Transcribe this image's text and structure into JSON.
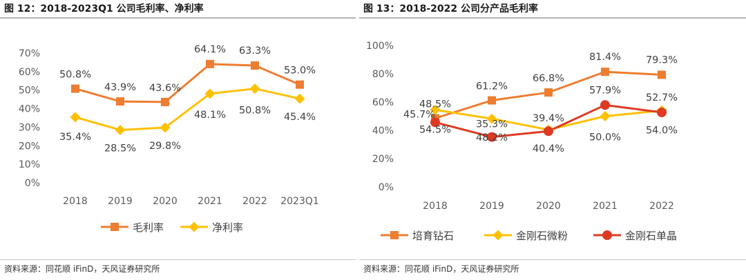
{
  "source_text": "资料来源：同花顺 iFinD，天风证券研究所",
  "colors": {
    "orange": "#ed7d31",
    "yellow": "#ffc000",
    "red": "#de3a22"
  },
  "chart_data": [
    {
      "type": "line",
      "title": "图 12：2018-2023Q1 公司毛利率、净利率",
      "categories": [
        "2018",
        "2019",
        "2020",
        "2021",
        "2022",
        "2023Q1"
      ],
      "y_ticks": [
        "0%",
        "10%",
        "20%",
        "30%",
        "40%",
        "50%",
        "60%",
        "70%"
      ],
      "ylim": [
        0,
        70
      ],
      "series": [
        {
          "name": "毛利率",
          "color": "#ed7d31",
          "marker": "square",
          "values": [
            50.8,
            43.9,
            43.6,
            64.1,
            63.3,
            53.0
          ],
          "labels": [
            "50.8%",
            "43.9%",
            "43.6%",
            "64.1%",
            "63.3%",
            "53.0%"
          ]
        },
        {
          "name": "净利率",
          "color": "#ffc000",
          "marker": "diamond",
          "values": [
            35.4,
            28.5,
            29.8,
            48.1,
            50.8,
            45.4
          ],
          "labels": [
            "35.4%",
            "28.5%",
            "29.8%",
            "48.1%",
            "50.8%",
            "45.4%"
          ]
        }
      ],
      "legend": "bottom"
    },
    {
      "type": "line",
      "title": "图 13：2018-2022 公司分产品毛利率",
      "categories": [
        "2018",
        "2019",
        "2020",
        "2021",
        "2022"
      ],
      "y_ticks": [
        "0%",
        "20%",
        "40%",
        "60%",
        "80%",
        "100%"
      ],
      "ylim": [
        0,
        100
      ],
      "series": [
        {
          "name": "培育钻石",
          "color": "#ed7d31",
          "marker": "square",
          "values": [
            48.5,
            61.2,
            66.8,
            81.4,
            79.3
          ],
          "labels": [
            "48.5%",
            "61.2%",
            "66.8%",
            "81.4%",
            "79.3%"
          ]
        },
        {
          "name": "金刚石微粉",
          "color": "#ffc000",
          "marker": "diamond",
          "values": [
            54.5,
            48.2,
            40.4,
            50.0,
            54.0
          ],
          "labels": [
            "54.5%",
            "48.2%",
            "40.4%",
            "50.0%",
            "54.0%"
          ]
        },
        {
          "name": "金刚石单晶",
          "color": "#de3a22",
          "marker": "circle",
          "values": [
            45.7,
            35.3,
            39.4,
            57.9,
            52.7
          ],
          "labels": [
            "45.7%",
            "35.3%",
            "39.4%",
            "57.9%",
            "52.7%"
          ]
        }
      ],
      "legend": "bottom"
    }
  ]
}
